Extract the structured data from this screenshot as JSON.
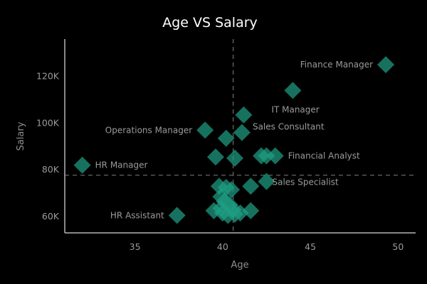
{
  "chart_data": {
    "type": "scatter",
    "title": "Age VS Salary",
    "xlabel": "Age",
    "ylabel": "Salary",
    "xlim": [
      31,
      51
    ],
    "ylim": [
      53000,
      136000
    ],
    "xticks": [
      35,
      40,
      45,
      50
    ],
    "yticks": [
      60000,
      80000,
      100000,
      120000
    ],
    "ytick_labels": [
      "60K",
      "80K",
      "100K",
      "120K"
    ],
    "reference_lines": {
      "x": 40.6,
      "y": 77700
    },
    "marker": "diamond",
    "marker_color": "#1e9e83",
    "points": [
      {
        "x": 49.3,
        "y": 125000,
        "label": "Finance Manager"
      },
      {
        "x": 44.0,
        "y": 114000,
        "label": "IT Manager"
      },
      {
        "x": 41.2,
        "y": 103500
      },
      {
        "x": 39.0,
        "y": 97000,
        "label": "Operations Manager"
      },
      {
        "x": 40.2,
        "y": 93500
      },
      {
        "x": 41.1,
        "y": 96000,
        "label": "Sales Consultant"
      },
      {
        "x": 32.0,
        "y": 82000,
        "label": "HR Manager"
      },
      {
        "x": 39.6,
        "y": 85500
      },
      {
        "x": 40.7,
        "y": 85000
      },
      {
        "x": 42.2,
        "y": 86000
      },
      {
        "x": 43.0,
        "y": 86000,
        "label": "Financial Analyst"
      },
      {
        "x": 42.5,
        "y": 86000
      },
      {
        "x": 42.5,
        "y": 75000,
        "label": "Sales Specialist"
      },
      {
        "x": 41.6,
        "y": 73000
      },
      {
        "x": 39.8,
        "y": 73000
      },
      {
        "x": 40.2,
        "y": 72500
      },
      {
        "x": 40.5,
        "y": 71500
      },
      {
        "x": 39.9,
        "y": 68500
      },
      {
        "x": 40.1,
        "y": 66500
      },
      {
        "x": 40.4,
        "y": 65000
      },
      {
        "x": 39.5,
        "y": 62500
      },
      {
        "x": 40.0,
        "y": 61500
      },
      {
        "x": 40.3,
        "y": 60500
      },
      {
        "x": 40.7,
        "y": 61000
      },
      {
        "x": 41.0,
        "y": 61500
      },
      {
        "x": 41.6,
        "y": 62500
      },
      {
        "x": 39.9,
        "y": 63500
      },
      {
        "x": 40.6,
        "y": 63000
      },
      {
        "x": 37.4,
        "y": 60500,
        "label": "HR Assistant"
      }
    ]
  }
}
